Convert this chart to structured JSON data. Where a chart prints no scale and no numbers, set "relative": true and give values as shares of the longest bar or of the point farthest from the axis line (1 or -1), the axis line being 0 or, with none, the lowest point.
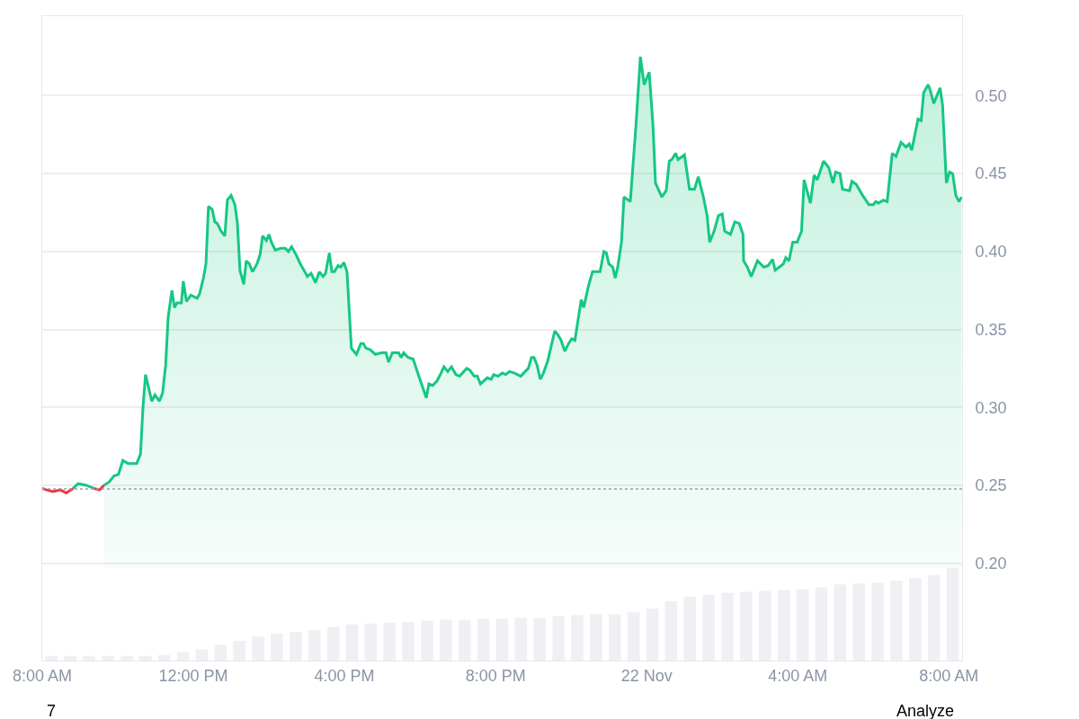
{
  "chart_data": [
    {
      "type": "line",
      "xlim": [
        "--11-21T08:00",
        "--11-22T08:21"
      ],
      "ylim": [
        0.1375,
        0.551
      ],
      "xticks": [
        {
          "value": "--11-21T08:00",
          "label": "8:00 AM"
        },
        {
          "value": "--11-21T12:00",
          "label": "12:00 PM"
        },
        {
          "value": "--11-21T16:00",
          "label": "4:00 PM"
        },
        {
          "value": "--11-21T20:00",
          "label": "8:00 PM"
        },
        {
          "value": "--11-22T00:00",
          "label": "22 Nov"
        },
        {
          "value": "--11-22T04:00",
          "label": "4:00 AM"
        },
        {
          "value": "--11-22T08:00",
          "label": "8:00 AM"
        }
      ],
      "yticks": [
        {
          "value": 0.2,
          "label": "0.20"
        },
        {
          "value": 0.25,
          "label": "0.25"
        },
        {
          "value": 0.3,
          "label": "0.30"
        },
        {
          "value": 0.35,
          "label": "0.35"
        },
        {
          "value": 0.4,
          "label": "0.40"
        },
        {
          "value": 0.45,
          "label": "0.45"
        },
        {
          "value": 0.5,
          "label": "0.50"
        }
      ],
      "grid": "y",
      "ref_lines": [
        {
          "axis": "y",
          "value": 0.2477,
          "color": "#9aa0a6",
          "line_style": "dotted"
        }
      ],
      "annotations": [
        "7",
        "Analyze"
      ],
      "series": [
        {
          "type": "line",
          "color": "#ea3943",
          "x": [
            "--11-21T08:00",
            "--11-21T08:07",
            "--11-21T08:17",
            "--11-21T08:29",
            "--11-21T08:38",
            "--11-21T08:49"
          ],
          "values": [
            0.248,
            0.247,
            0.246,
            0.247,
            0.245,
            0.248
          ]
        },
        {
          "type": "line",
          "color": "#16c784",
          "x": [
            "--11-21T08:49",
            "--11-21T08:57",
            "--11-21T09:10",
            "--11-21T09:22"
          ],
          "values": [
            0.248,
            0.251,
            0.25,
            0.248
          ]
        },
        {
          "type": "line",
          "color": "#ea3943",
          "x": [
            "--11-21T09:22",
            "--11-21T09:31",
            "--11-21T09:38"
          ],
          "values": [
            0.248,
            0.247,
            0.25
          ]
        },
        {
          "type": "area",
          "color": "#16c784",
          "x": [
            "--11-21T09:38",
            "--11-21T09:46",
            "--11-21T09:54",
            "--11-21T10:01",
            "--11-21T10:08",
            "--11-21T10:16",
            "--11-21T10:30",
            "--11-21T10:36",
            "--11-21T10:40",
            "--11-21T10:44",
            "--11-21T10:54",
            "--11-21T10:59",
            "--11-21T11:06",
            "--11-21T11:11",
            "--11-21T11:16",
            "--11-21T11:20",
            "--11-21T11:26",
            "--11-21T11:30",
            "--11-21T11:34",
            "--11-21T11:41",
            "--11-21T11:44",
            "--11-21T11:49",
            "--11-21T11:56",
            "--11-21T12:06",
            "--11-21T12:10",
            "--11-21T12:16",
            "--11-21T12:20",
            "--11-21T12:24",
            "--11-21T12:30",
            "--11-21T12:34",
            "--11-21T12:38",
            "--11-21T12:44",
            "--11-21T12:50",
            "--11-21T12:54",
            "--11-21T13:00",
            "--11-21T13:06",
            "--11-21T13:10",
            "--11-21T13:14",
            "--11-21T13:20",
            "--11-21T13:24",
            "--11-21T13:29",
            "--11-21T13:34",
            "--11-21T13:41",
            "--11-21T13:46",
            "--11-21T13:50",
            "--11-21T13:56",
            "--11-21T14:00",
            "--11-21T14:04",
            "--11-21T14:10",
            "--11-21T14:19",
            "--11-21T14:26",
            "--11-21T14:31",
            "--11-21T14:36",
            "--11-21T14:43",
            "--11-21T14:50",
            "--11-21T14:57",
            "--11-21T15:01",
            "--11-21T15:07",
            "--11-21T15:14",
            "--11-21T15:20",
            "--11-21T15:26",
            "--11-21T15:30",
            "--11-21T15:36",
            "--11-21T15:40",
            "--11-21T15:44",
            "--11-21T15:50",
            "--11-21T15:54",
            "--11-21T15:59",
            "--11-21T16:04",
            "--11-21T16:11",
            "--11-21T16:19",
            "--11-21T16:26",
            "--11-21T16:30",
            "--11-21T16:34",
            "--11-21T16:41",
            "--11-21T16:49",
            "--11-21T16:59",
            "--11-21T17:06",
            "--11-21T17:10",
            "--11-21T17:16",
            "--11-21T17:26",
            "--11-21T17:30",
            "--11-21T17:34",
            "--11-21T17:41",
            "--11-21T17:49",
            "--11-21T17:59",
            "--11-21T18:10",
            "--11-21T18:14",
            "--11-21T18:20",
            "--11-21T18:27",
            "--11-21T18:31",
            "--11-21T18:38",
            "--11-21T18:44",
            "--11-21T18:50",
            "--11-21T18:57",
            "--11-21T19:03",
            "--11-21T19:14",
            "--11-21T19:19",
            "--11-21T19:26",
            "--11-21T19:31",
            "--11-21T19:36",
            "--11-21T19:47",
            "--11-21T19:53",
            "--11-21T19:57",
            "--11-21T20:04",
            "--11-21T20:11",
            "--11-21T20:16",
            "--11-21T20:22",
            "--11-21T20:30",
            "--11-21T20:40",
            "--11-21T20:47",
            "--11-21T20:52",
            "--11-21T20:57",
            "--11-21T21:01",
            "--11-21T21:06",
            "--11-21T21:11",
            "--11-21T21:16",
            "--11-21T21:23",
            "--11-21T21:27",
            "--11-21T21:34",
            "--11-21T21:40",
            "--11-21T21:44",
            "--11-21T21:50",
            "--11-21T21:56",
            "--11-21T22:01",
            "--11-21T22:06",
            "--11-21T22:16",
            "--11-21T22:20",
            "--11-21T22:27",
            "--11-21T22:34",
            "--11-21T22:38",
            "--11-21T22:46",
            "--11-21T22:52",
            "--11-21T22:56",
            "--11-21T23:00",
            "--11-21T23:06",
            "--11-21T23:10",
            "--11-21T23:14",
            "--11-21T23:20",
            "--11-21T23:24",
            "--11-21T23:34",
            "--11-21T23:43",
            "--11-21T23:50",
            "--11-21T23:56",
            "--11-22T00:04",
            "--11-22T00:10",
            "--11-22T00:14",
            "--11-22T00:24",
            "--11-22T00:31",
            "--11-22T00:36",
            "--11-22T00:40",
            "--11-22T00:46",
            "--11-22T00:50",
            "--11-22T01:00",
            "--11-22T01:08",
            "--11-22T01:16",
            "--11-22T01:22",
            "--11-22T01:30",
            "--11-22T01:36",
            "--11-22T01:40",
            "--11-22T01:47",
            "--11-22T01:54",
            "--11-22T02:00",
            "--11-22T02:04",
            "--11-22T02:13",
            "--11-22T02:20",
            "--11-22T02:27",
            "--11-22T02:33",
            "--11-22T02:34",
            "--11-22T02:40",
            "--11-22T02:46",
            "--11-22T02:56",
            "--11-22T03:06",
            "--11-22T03:13",
            "--11-22T03:20",
            "--11-22T03:24",
            "--11-22T03:37",
            "--11-22T03:41",
            "--11-22T03:46",
            "--11-22T03:52",
            "--11-22T03:59",
            "--11-22T04:06",
            "--11-22T04:10",
            "--11-22T04:20",
            "--11-22T04:26",
            "--11-22T04:31",
            "--11-22T04:41",
            "--11-22T04:49",
            "--11-22T04:56",
            "--11-22T05:00",
            "--11-22T05:07",
            "--11-22T05:11",
            "--11-22T05:22",
            "--11-22T05:26",
            "--11-22T05:33",
            "--11-22T05:43",
            "--11-22T05:53",
            "--11-22T06:00",
            "--11-22T06:04",
            "--11-22T06:08",
            "--11-22T06:16",
            "--11-22T06:22",
            "--11-22T06:30",
            "--11-22T06:36",
            "--11-22T06:44",
            "--11-22T06:52",
            "--11-22T06:57",
            "--11-22T07:01",
            "--11-22T07:11",
            "--11-22T07:16",
            "--11-22T07:20",
            "--11-22T07:27",
            "--11-22T07:30",
            "--11-22T07:36",
            "--11-22T07:46",
            "--11-22T07:50",
            "--11-22T07:56",
            "--11-22T08:01",
            "--11-22T08:06",
            "--11-22T08:11",
            "--11-22T08:16",
            "--11-22T08:20"
          ],
          "values": [
            0.25,
            0.252,
            0.256,
            0.257,
            0.266,
            0.264,
            0.264,
            0.27,
            0.3,
            0.321,
            0.304,
            0.308,
            0.304,
            0.309,
            0.327,
            0.358,
            0.375,
            0.364,
            0.367,
            0.367,
            0.381,
            0.368,
            0.372,
            0.37,
            0.373,
            0.383,
            0.392,
            0.429,
            0.427,
            0.419,
            0.418,
            0.413,
            0.41,
            0.433,
            0.436,
            0.43,
            0.418,
            0.388,
            0.379,
            0.394,
            0.392,
            0.387,
            0.392,
            0.398,
            0.41,
            0.407,
            0.411,
            0.406,
            0.401,
            0.402,
            0.402,
            0.4,
            0.403,
            0.398,
            0.392,
            0.387,
            0.384,
            0.386,
            0.38,
            0.387,
            0.384,
            0.386,
            0.399,
            0.387,
            0.387,
            0.391,
            0.39,
            0.393,
            0.387,
            0.338,
            0.334,
            0.341,
            0.341,
            0.338,
            0.337,
            0.334,
            0.335,
            0.335,
            0.329,
            0.335,
            0.335,
            0.332,
            0.335,
            0.332,
            0.331,
            0.319,
            0.306,
            0.315,
            0.314,
            0.317,
            0.32,
            0.326,
            0.323,
            0.326,
            0.321,
            0.32,
            0.325,
            0.324,
            0.32,
            0.32,
            0.315,
            0.319,
            0.318,
            0.321,
            0.32,
            0.322,
            0.321,
            0.323,
            0.322,
            0.32,
            0.323,
            0.325,
            0.332,
            0.332,
            0.327,
            0.318,
            0.322,
            0.33,
            0.337,
            0.349,
            0.346,
            0.343,
            0.336,
            0.341,
            0.344,
            0.343,
            0.369,
            0.364,
            0.377,
            0.387,
            0.387,
            0.387,
            0.4,
            0.399,
            0.392,
            0.39,
            0.383,
            0.39,
            0.406,
            0.435,
            0.432,
            0.481,
            0.525,
            0.507,
            0.515,
            0.481,
            0.444,
            0.435,
            0.439,
            0.458,
            0.459,
            0.463,
            0.459,
            0.462,
            0.44,
            0.44,
            0.448,
            0.435,
            0.423,
            0.406,
            0.413,
            0.423,
            0.424,
            0.413,
            0.411,
            0.419,
            0.418,
            0.411,
            0.394,
            0.39,
            0.384,
            0.394,
            0.39,
            0.391,
            0.395,
            0.388,
            0.392,
            0.396,
            0.394,
            0.406,
            0.406,
            0.413,
            0.446,
            0.431,
            0.449,
            0.446,
            0.458,
            0.454,
            0.444,
            0.451,
            0.45,
            0.44,
            0.439,
            0.445,
            0.443,
            0.436,
            0.43,
            0.43,
            0.432,
            0.431,
            0.433,
            0.432,
            0.463,
            0.461,
            0.47,
            0.467,
            0.469,
            0.465,
            0.485,
            0.484,
            0.502,
            0.507,
            0.504,
            0.495,
            0.505,
            0.494,
            0.444,
            0.451,
            0.45,
            0.436,
            0.432,
            0.435
          ]
        }
      ]
    },
    {
      "type": "bar",
      "relative": true,
      "color": "#eef0f3",
      "categories": [
        null,
        null,
        null,
        null,
        null,
        null,
        null,
        null,
        null,
        null,
        null,
        null,
        null,
        null,
        null,
        null,
        null,
        null,
        null,
        null,
        null,
        null,
        null,
        null,
        null,
        null,
        null,
        null,
        null,
        null,
        null,
        null,
        null,
        null,
        null,
        null,
        null,
        null,
        null,
        null,
        null,
        null,
        null,
        null,
        null,
        null,
        null,
        null,
        null
      ],
      "values": [
        0.05,
        0.05,
        0.05,
        0.05,
        0.05,
        0.05,
        0.06,
        0.09,
        0.12,
        0.17,
        0.21,
        0.26,
        0.29,
        0.31,
        0.33,
        0.36,
        0.39,
        0.4,
        0.41,
        0.42,
        0.43,
        0.44,
        0.44,
        0.45,
        0.45,
        0.46,
        0.46,
        0.48,
        0.49,
        0.5,
        0.5,
        0.52,
        0.56,
        0.64,
        0.69,
        0.71,
        0.73,
        0.74,
        0.75,
        0.76,
        0.77,
        0.79,
        0.82,
        0.83,
        0.84,
        0.86,
        0.89,
        0.92,
        1.0
      ]
    }
  ]
}
